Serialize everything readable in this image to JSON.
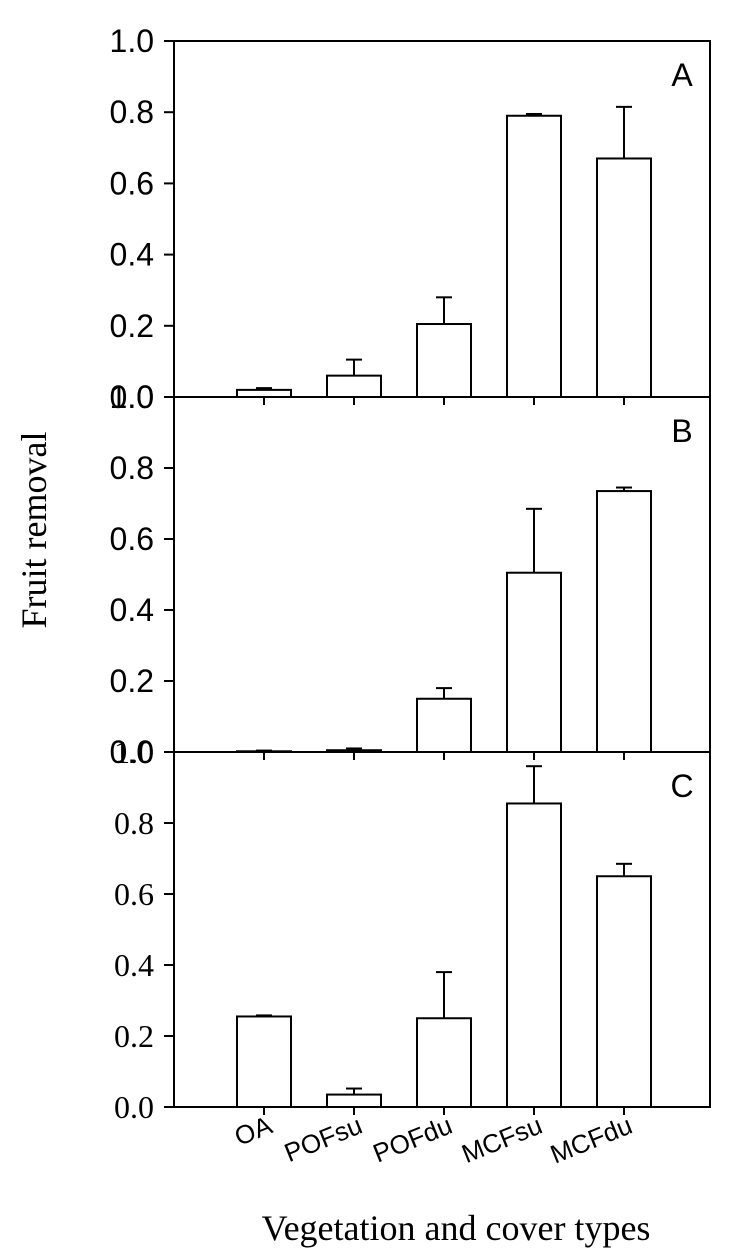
{
  "chart_data": {
    "type": "bar",
    "categories": [
      "OA",
      "POFsu",
      "POFdu",
      "MCFsu",
      "MCFdu"
    ],
    "xlabel": "Vegetation and cover types",
    "ylabel": "Fruit removal",
    "ylim": [
      0,
      1.0
    ],
    "grid": false,
    "panels": [
      {
        "label": "A",
        "yticks": [
          "1.0",
          "0.8",
          "0.6",
          "0.4",
          "0.2",
          "0.0"
        ],
        "values": [
          0.02,
          0.06,
          0.205,
          0.79,
          0.67
        ],
        "errors": [
          0.005,
          0.045,
          0.075,
          0.005,
          0.145
        ]
      },
      {
        "label": "B",
        "yticks": [
          "1.0",
          "0.8",
          "0.6",
          "0.4",
          "0.2",
          "0.0"
        ],
        "values": [
          0.002,
          0.005,
          0.15,
          0.505,
          0.735
        ],
        "errors": [
          0.002,
          0.005,
          0.03,
          0.18,
          0.01
        ]
      },
      {
        "label": "C",
        "yticks": [
          "1.0",
          "0.8",
          "0.6",
          "0.4",
          "0.2",
          "0.0"
        ],
        "values": [
          0.255,
          0.035,
          0.25,
          0.855,
          0.65
        ],
        "errors": [
          0.003,
          0.017,
          0.13,
          0.105,
          0.035
        ]
      }
    ]
  }
}
